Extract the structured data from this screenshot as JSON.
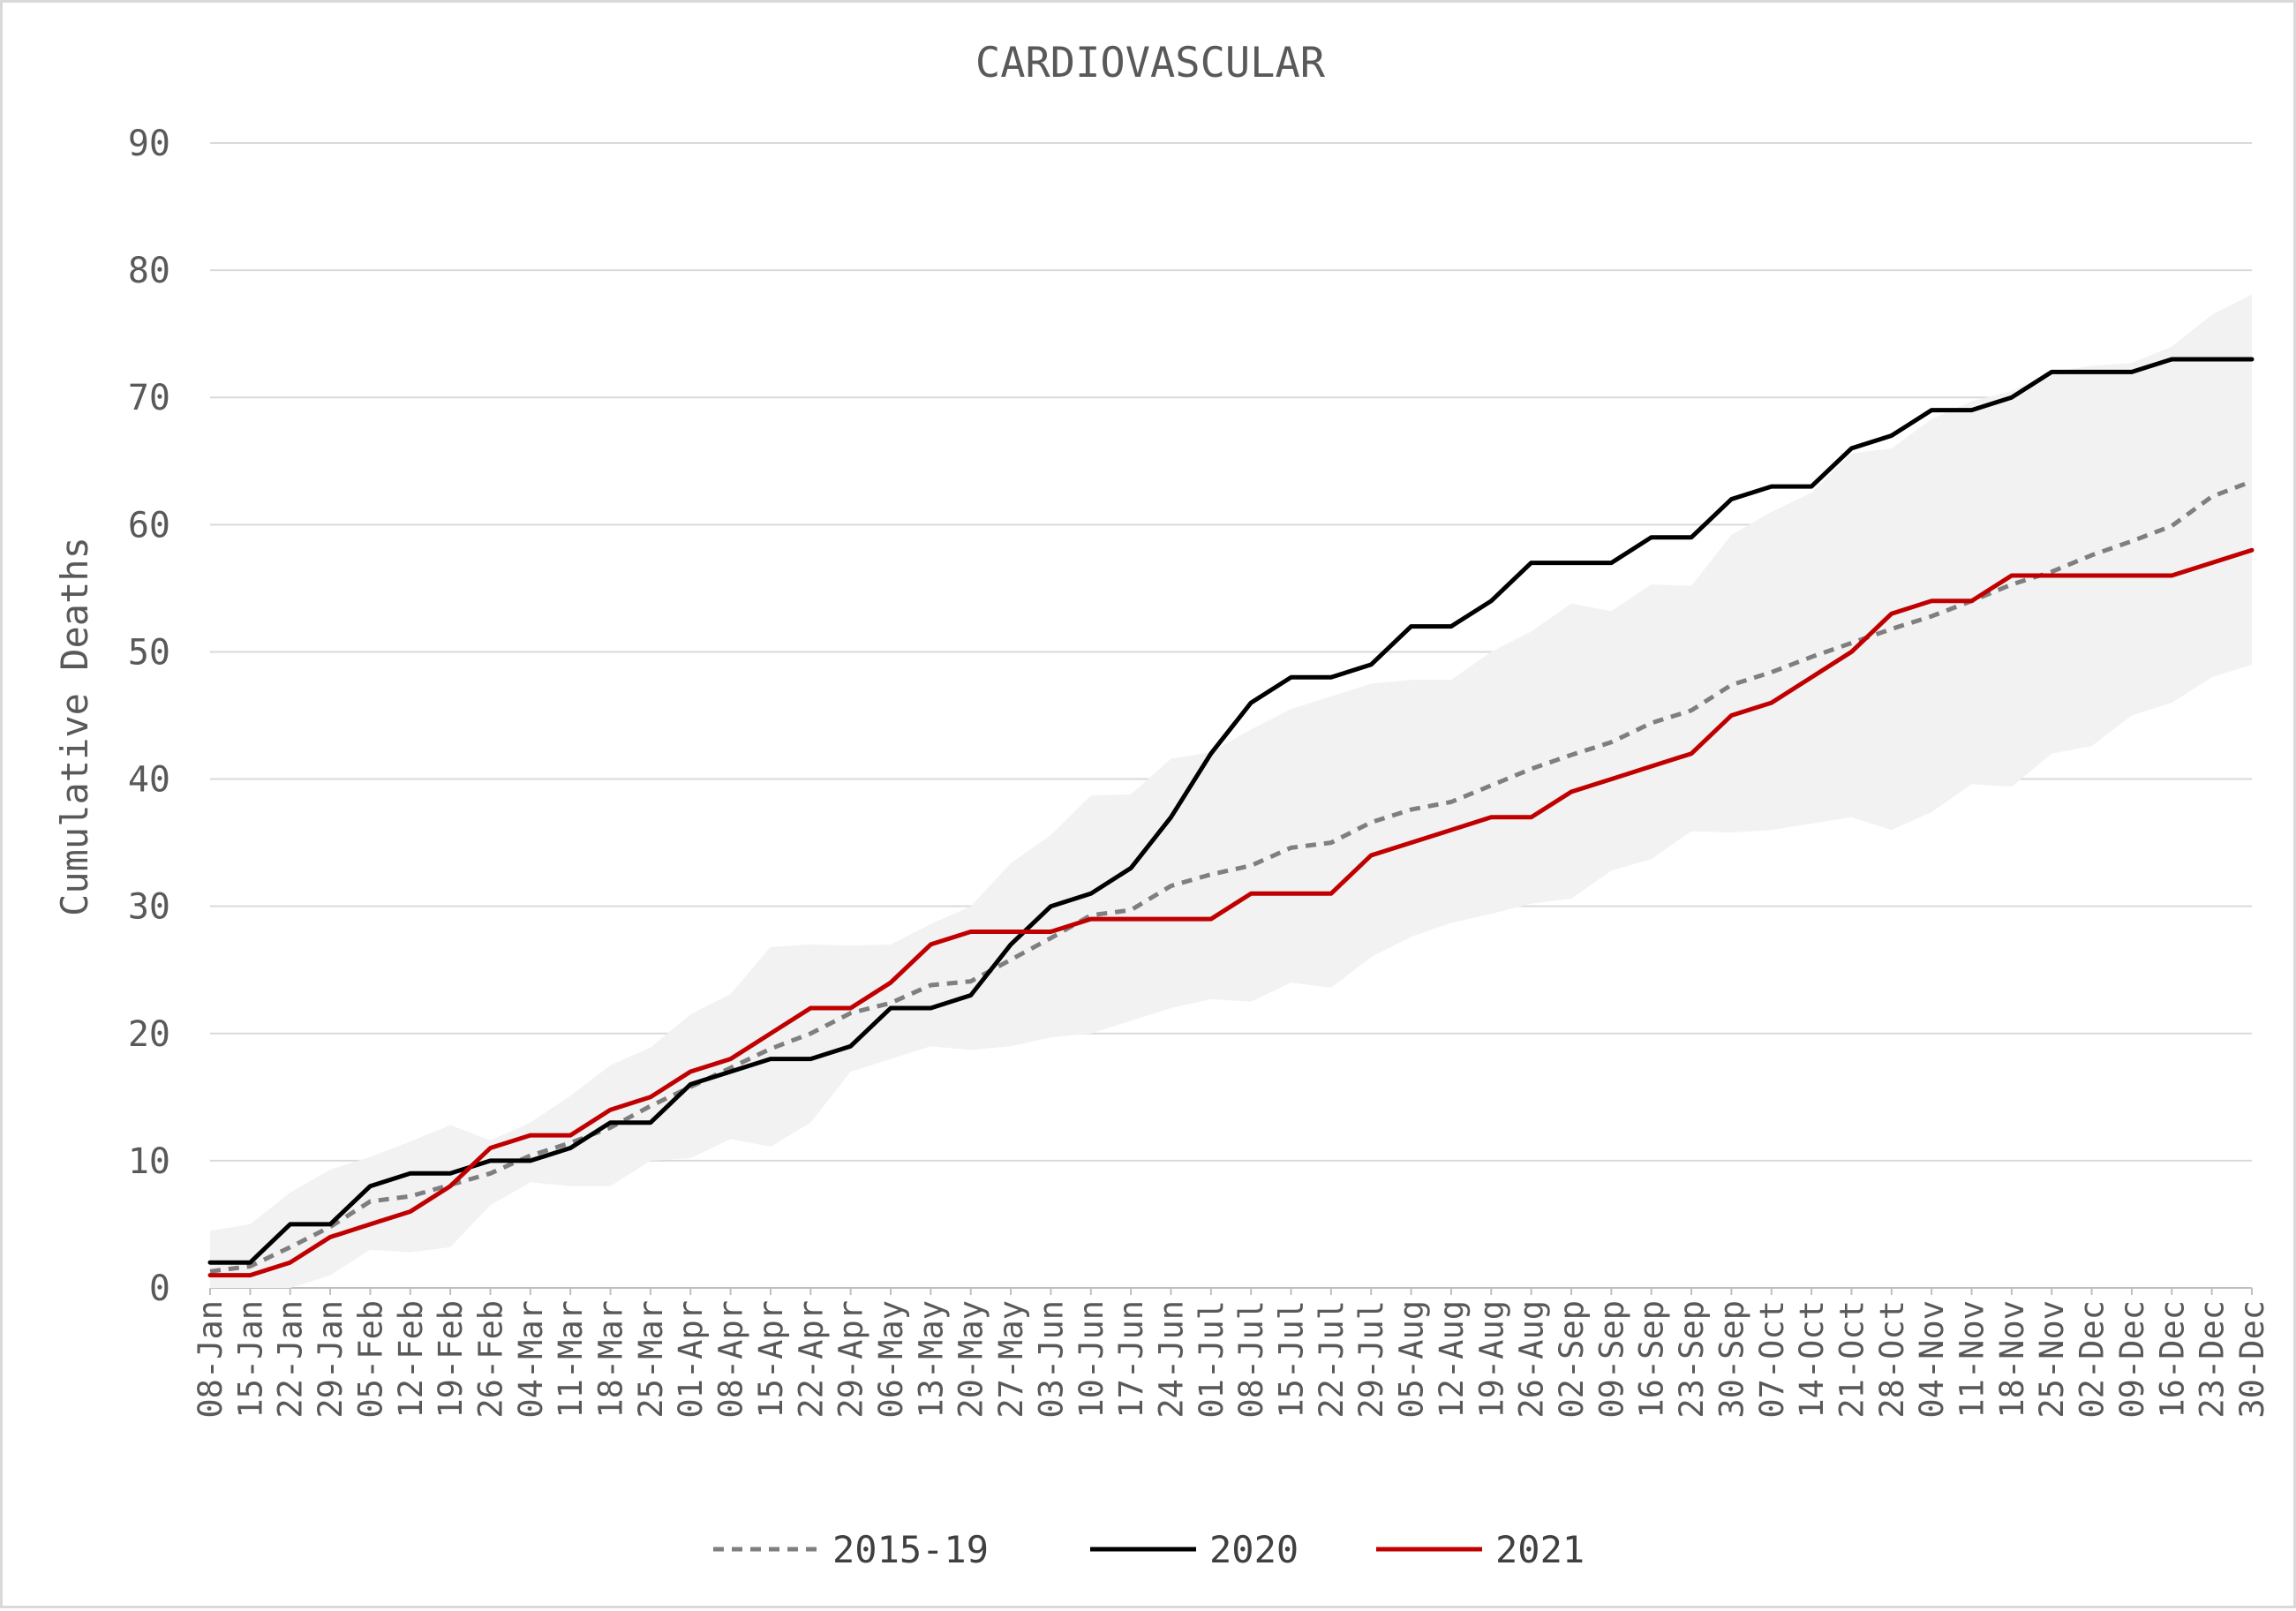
{
  "chart_data": {
    "type": "line",
    "title": "CARDIOVASCULAR",
    "ylabel": "Cumulative Deaths",
    "xlabel": "",
    "ylim": [
      0,
      90
    ],
    "yticks": [
      0,
      10,
      20,
      30,
      40,
      50,
      60,
      70,
      80,
      90
    ],
    "grid": true,
    "legend_position": "bottom",
    "categories": [
      "08-Jan",
      "15-Jan",
      "22-Jan",
      "29-Jan",
      "05-Feb",
      "12-Feb",
      "19-Feb",
      "26-Feb",
      "04-Mar",
      "11-Mar",
      "18-Mar",
      "25-Mar",
      "01-Apr",
      "08-Apr",
      "15-Apr",
      "22-Apr",
      "29-Apr",
      "06-May",
      "13-May",
      "20-May",
      "27-May",
      "03-Jun",
      "10-Jun",
      "17-Jun",
      "24-Jun",
      "01-Jul",
      "08-Jul",
      "15-Jul",
      "22-Jul",
      "29-Jul",
      "05-Aug",
      "12-Aug",
      "19-Aug",
      "26-Aug",
      "02-Sep",
      "09-Sep",
      "16-Sep",
      "23-Sep",
      "30-Sep",
      "07-Oct",
      "14-Oct",
      "21-Oct",
      "28-Oct",
      "04-Nov",
      "11-Nov",
      "18-Nov",
      "25-Nov",
      "02-Dec",
      "09-Dec",
      "16-Dec",
      "23-Dec",
      "30-Dec"
    ],
    "range_band": {
      "color": "#f2f2f2",
      "lower": [
        0,
        0,
        0,
        1,
        3,
        2.8,
        3.2,
        6.5,
        8.3,
        8.0,
        8.0,
        10,
        10.2,
        11.7,
        11.1,
        13.0,
        17,
        18,
        19,
        18.7,
        19,
        19.7,
        20,
        21,
        22,
        22.7,
        22.5,
        24,
        23.6,
        26,
        27.6,
        28.7,
        29.4,
        30.2,
        30.6,
        32.8,
        33.7,
        35.9,
        35.8,
        36,
        36.5,
        37,
        36,
        37.4,
        39.6,
        39.4,
        42,
        42.6,
        45,
        46,
        48,
        49
      ],
      "upper": [
        4.5,
        5,
        7.5,
        9.3,
        10.3,
        11.5,
        12.8,
        11.6,
        13,
        15.1,
        17.5,
        18.9,
        21.5,
        23.1,
        26.8,
        27,
        26.9,
        27,
        28.6,
        30,
        33.4,
        35.6,
        38.7,
        38.8,
        41.6,
        42.1,
        43.9,
        45.5,
        46.5,
        47.5,
        47.8,
        47.8,
        50,
        51.6,
        53.8,
        53.2,
        55.3,
        55.2,
        59.2,
        61,
        62.5,
        65.6,
        66,
        68.3,
        69.7,
        70.5,
        72,
        72.5,
        72.7,
        74,
        76.5,
        78.1
      ]
    },
    "series": [
      {
        "name": "2015-19",
        "color": "#7f7f7f",
        "dash": "dashed",
        "values": [
          1.3,
          1.7,
          3.2,
          4.8,
          6.8,
          7.2,
          8.1,
          9,
          10.4,
          11.4,
          12.6,
          14.3,
          15.8,
          17.3,
          18.8,
          20,
          21.6,
          22.4,
          23.8,
          24.1,
          25.8,
          27.5,
          29.3,
          29.7,
          31.6,
          32.5,
          33.2,
          34.6,
          35,
          36.6,
          37.6,
          38.2,
          39.5,
          40.8,
          41.9,
          42.9,
          44.4,
          45.4,
          47.4,
          48.4,
          49.6,
          50.7,
          51.8,
          52.8,
          54,
          55.3,
          56.3,
          57.6,
          58.7,
          59.9,
          62.2,
          63.4
        ]
      },
      {
        "name": "2020",
        "color": "#000000",
        "dash": "solid",
        "values": [
          2,
          2,
          5,
          5,
          8,
          9,
          9,
          10,
          10,
          11,
          13,
          13,
          16,
          17,
          18,
          18,
          19,
          22,
          22,
          23,
          27,
          30,
          31,
          33,
          37,
          42,
          46,
          48,
          48,
          49,
          52,
          52,
          54,
          57,
          57,
          57,
          59,
          59,
          62,
          63,
          63,
          66,
          67,
          69,
          69,
          70,
          72,
          72,
          72,
          73,
          73,
          73
        ]
      },
      {
        "name": "2021",
        "color": "#c00000",
        "dash": "solid",
        "values": [
          1,
          1,
          2,
          4,
          5,
          6,
          8,
          11,
          12,
          12,
          14,
          15,
          17,
          18,
          20,
          22,
          22,
          24,
          27,
          28,
          28,
          28,
          29,
          29,
          29,
          29,
          31,
          31,
          31,
          34,
          35,
          36,
          37,
          37,
          39,
          40,
          41,
          42,
          45,
          46,
          48,
          50,
          53,
          54,
          54,
          56,
          56,
          56,
          56,
          56,
          57,
          58
        ]
      }
    ]
  }
}
